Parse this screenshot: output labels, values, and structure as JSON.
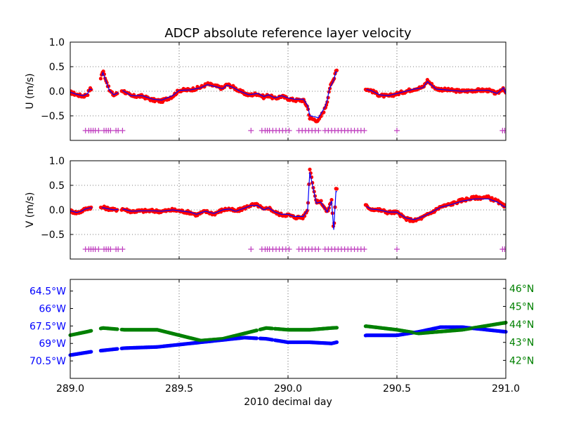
{
  "chart_data": {
    "type": "scatter",
    "title": "ADCP absolute reference layer velocity",
    "xlabel": "2010 decimal day",
    "xlim": [
      289.0,
      291.0
    ],
    "x_ticks": [
      289.0,
      289.5,
      290.0,
      290.5,
      291.0
    ],
    "x_tick_labels": [
      "289.0",
      "289.5",
      "290.0",
      "290.5",
      "291.0"
    ],
    "grid": true,
    "colors": {
      "raw_points": "#ff0000",
      "smoothed_line": "#0000ff",
      "flag_markers": "#bf3fbf",
      "longitude": "#0000ff",
      "latitude": "#008000"
    },
    "panels": [
      {
        "ylabel": "U (m/s)",
        "ylim": [
          -1.0,
          1.0
        ],
        "y_ticks": [
          -0.5,
          0.0,
          0.5,
          1.0
        ],
        "y_tick_labels": [
          "−0.5",
          "0.0",
          "0.5",
          "1.0"
        ],
        "flag_y": -0.8,
        "key_points": [
          [
            289.0,
            -0.02
          ],
          [
            289.03,
            -0.07
          ],
          [
            289.06,
            -0.1
          ],
          [
            289.08,
            -0.05
          ],
          [
            289.09,
            0.05
          ],
          [
            289.12,
            -0.01
          ],
          [
            289.15,
            0.42
          ],
          [
            289.18,
            0.02
          ],
          [
            289.2,
            -0.08
          ],
          [
            289.24,
            0.02
          ],
          [
            289.28,
            -0.1
          ],
          [
            289.33,
            -0.1
          ],
          [
            289.38,
            -0.18
          ],
          [
            289.42,
            -0.2
          ],
          [
            289.47,
            -0.1
          ],
          [
            289.5,
            0.02
          ],
          [
            289.55,
            0.03
          ],
          [
            289.6,
            0.08
          ],
          [
            289.63,
            0.15
          ],
          [
            289.67,
            0.1
          ],
          [
            289.7,
            0.06
          ],
          [
            289.72,
            0.14
          ],
          [
            289.75,
            0.08
          ],
          [
            289.78,
            0.0
          ],
          [
            289.82,
            -0.08
          ],
          [
            289.86,
            -0.05
          ],
          [
            289.89,
            -0.12
          ],
          [
            289.91,
            -0.08
          ],
          [
            289.94,
            -0.15
          ],
          [
            289.97,
            -0.1
          ],
          [
            290.0,
            -0.15
          ],
          [
            290.03,
            -0.18
          ],
          [
            290.07,
            -0.18
          ],
          [
            290.09,
            -0.32
          ],
          [
            290.1,
            -0.55
          ],
          [
            290.14,
            -0.6
          ],
          [
            290.17,
            -0.35
          ],
          [
            290.18,
            -0.2
          ],
          [
            290.19,
            0.05
          ],
          [
            290.21,
            0.25
          ],
          [
            290.22,
            0.44
          ],
          [
            290.36,
            0.04
          ],
          [
            290.38,
            0.02
          ],
          [
            290.42,
            -0.08
          ],
          [
            290.46,
            -0.1
          ],
          [
            290.5,
            -0.05
          ],
          [
            290.54,
            0.0
          ],
          [
            290.58,
            0.05
          ],
          [
            290.62,
            0.08
          ],
          [
            290.64,
            0.22
          ],
          [
            290.68,
            0.05
          ],
          [
            290.75,
            0.02
          ],
          [
            290.8,
            0.0
          ],
          [
            290.86,
            0.02
          ],
          [
            290.92,
            0.02
          ],
          [
            290.96,
            -0.05
          ],
          [
            290.99,
            0.08
          ],
          [
            291.0,
            -0.06
          ]
        ],
        "gaps": [
          [
            289.1,
            289.14
          ],
          [
            289.22,
            289.235
          ],
          [
            290.225,
            290.355
          ]
        ],
        "flag_x": [
          289.07,
          289.085,
          289.095,
          289.105,
          289.115,
          289.13,
          289.155,
          289.165,
          289.175,
          289.185,
          289.21,
          289.22,
          289.24,
          289.83,
          289.88,
          289.895,
          289.905,
          289.915,
          289.93,
          289.945,
          289.96,
          289.975,
          289.99,
          290.005,
          290.05,
          290.065,
          290.08,
          290.095,
          290.11,
          290.125,
          290.14,
          290.17,
          290.185,
          290.2,
          290.215,
          290.23,
          290.245,
          290.26,
          290.275,
          290.29,
          290.305,
          290.32,
          290.335,
          290.35,
          290.5,
          290.985,
          290.995
        ]
      },
      {
        "ylabel": "V (m/s)",
        "ylim": [
          -1.0,
          1.0
        ],
        "y_ticks": [
          -0.5,
          0.0,
          0.5,
          1.0
        ],
        "y_tick_labels": [
          "−0.5",
          "0.0",
          "0.5",
          "1.0"
        ],
        "flag_y": -0.8,
        "key_points": [
          [
            289.0,
            -0.02
          ],
          [
            289.03,
            -0.06
          ],
          [
            289.05,
            -0.03
          ],
          [
            289.07,
            0.02
          ],
          [
            289.09,
            0.05
          ],
          [
            289.12,
            0.02
          ],
          [
            289.15,
            0.05
          ],
          [
            289.18,
            0.02
          ],
          [
            289.2,
            0.0
          ],
          [
            289.24,
            0.02
          ],
          [
            289.28,
            -0.03
          ],
          [
            289.33,
            -0.02
          ],
          [
            289.38,
            -0.02
          ],
          [
            289.42,
            -0.03
          ],
          [
            289.47,
            0.0
          ],
          [
            289.5,
            -0.02
          ],
          [
            289.55,
            -0.05
          ],
          [
            289.58,
            -0.1
          ],
          [
            289.62,
            -0.03
          ],
          [
            289.66,
            -0.08
          ],
          [
            289.7,
            0.0
          ],
          [
            289.73,
            0.02
          ],
          [
            289.76,
            -0.03
          ],
          [
            289.8,
            0.04
          ],
          [
            289.83,
            0.1
          ],
          [
            289.86,
            0.1
          ],
          [
            289.89,
            0.0
          ],
          [
            289.91,
            0.05
          ],
          [
            289.94,
            -0.05
          ],
          [
            289.97,
            -0.1
          ],
          [
            290.0,
            -0.1
          ],
          [
            290.03,
            -0.15
          ],
          [
            290.07,
            -0.15
          ],
          [
            290.09,
            0.0
          ],
          [
            290.1,
            0.85
          ],
          [
            290.13,
            0.15
          ],
          [
            290.15,
            0.18
          ],
          [
            290.18,
            -0.05
          ],
          [
            290.2,
            0.2
          ],
          [
            290.21,
            -0.45
          ],
          [
            290.22,
            0.42
          ],
          [
            290.36,
            0.08
          ],
          [
            290.38,
            0.02
          ],
          [
            290.42,
            0.0
          ],
          [
            290.46,
            -0.05
          ],
          [
            290.5,
            -0.05
          ],
          [
            290.54,
            -0.18
          ],
          [
            290.58,
            -0.22
          ],
          [
            290.62,
            -0.15
          ],
          [
            290.66,
            -0.05
          ],
          [
            290.7,
            0.06
          ],
          [
            290.75,
            0.12
          ],
          [
            290.8,
            0.2
          ],
          [
            290.86,
            0.25
          ],
          [
            290.92,
            0.25
          ],
          [
            290.96,
            0.18
          ],
          [
            290.99,
            0.08
          ],
          [
            291.0,
            0.06
          ]
        ],
        "gaps": [
          [
            289.1,
            289.14
          ],
          [
            289.22,
            289.235
          ],
          [
            290.225,
            290.355
          ]
        ],
        "flag_x": [
          289.07,
          289.085,
          289.095,
          289.105,
          289.115,
          289.13,
          289.155,
          289.165,
          289.175,
          289.185,
          289.21,
          289.22,
          289.24,
          289.83,
          289.88,
          289.895,
          289.905,
          289.915,
          289.93,
          289.945,
          289.96,
          289.975,
          289.99,
          290.005,
          290.05,
          290.065,
          290.08,
          290.095,
          290.11,
          290.125,
          290.14,
          290.17,
          290.185,
          290.2,
          290.215,
          290.23,
          290.245,
          290.26,
          290.275,
          290.29,
          290.305,
          290.32,
          290.335,
          290.35,
          290.5,
          290.985,
          290.995
        ]
      },
      {
        "ylabel_left": "",
        "ylabel_right": "",
        "left_axis": {
          "ylim": [
            -72.0,
            -63.5
          ],
          "y_ticks": [
            -64.5,
            -66.0,
            -67.5,
            -69.0,
            -70.5
          ],
          "y_tick_labels": [
            "64.5°W",
            "66°W",
            "67.5°W",
            "69°W",
            "70.5°W"
          ],
          "series_name": "",
          "key_points": [
            [
              289.0,
              -70.0
            ],
            [
              289.1,
              -69.7
            ],
            [
              289.25,
              -69.4
            ],
            [
              289.4,
              -69.3
            ],
            [
              289.5,
              -69.1
            ],
            [
              289.6,
              -68.9
            ],
            [
              289.7,
              -68.7
            ],
            [
              289.8,
              -68.5
            ],
            [
              289.9,
              -68.6
            ],
            [
              290.0,
              -68.9
            ],
            [
              290.1,
              -68.9
            ],
            [
              290.2,
              -69.0
            ],
            [
              290.36,
              -68.3
            ],
            [
              290.5,
              -68.3
            ],
            [
              290.6,
              -68.0
            ],
            [
              290.7,
              -67.6
            ],
            [
              290.8,
              -67.6
            ],
            [
              290.9,
              -67.8
            ],
            [
              291.0,
              -68.0
            ]
          ]
        },
        "right_axis": {
          "ylim": [
            41.0,
            46.5
          ],
          "y_ticks": [
            46,
            45,
            44,
            43,
            42
          ],
          "y_tick_labels": [
            "46°N",
            "45°N",
            "44°N",
            "43°N",
            "42°N"
          ],
          "series_name": "",
          "key_points": [
            [
              289.0,
              43.4
            ],
            [
              289.08,
              43.6
            ],
            [
              289.15,
              43.8
            ],
            [
              289.25,
              43.7
            ],
            [
              289.4,
              43.7
            ],
            [
              289.5,
              43.4
            ],
            [
              289.6,
              43.1
            ],
            [
              289.7,
              43.2
            ],
            [
              289.8,
              43.5
            ],
            [
              289.9,
              43.8
            ],
            [
              290.0,
              43.7
            ],
            [
              290.1,
              43.7
            ],
            [
              290.2,
              43.8
            ],
            [
              290.36,
              43.9
            ],
            [
              290.5,
              43.7
            ],
            [
              290.6,
              43.5
            ],
            [
              290.7,
              43.6
            ],
            [
              290.8,
              43.7
            ],
            [
              290.9,
              43.9
            ],
            [
              291.0,
              44.1
            ]
          ]
        },
        "gaps": [
          [
            289.1,
            289.14
          ],
          [
            289.22,
            289.235
          ],
          [
            289.86,
            289.87
          ],
          [
            289.93,
            289.94
          ],
          [
            290.225,
            290.355
          ]
        ]
      }
    ]
  }
}
